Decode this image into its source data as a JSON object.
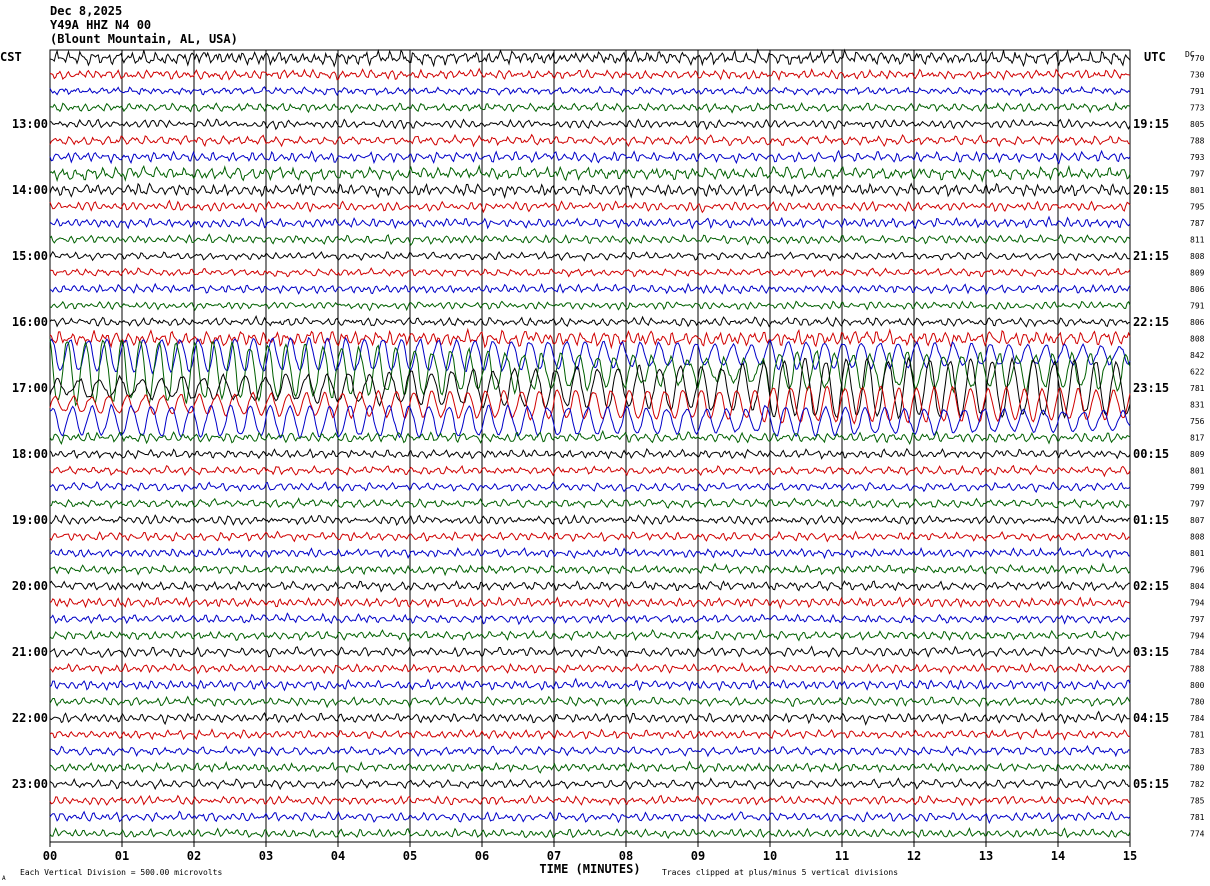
{
  "header": {
    "date": "Dec 8,2025",
    "station": "Y49A HHZ N4 00",
    "location": "(Blount Mountain, AL, USA)"
  },
  "labels": {
    "left_tz": "CST",
    "right_tz": "UTC",
    "dc": "DC",
    "x_axis_title": "TIME (MINUTES)",
    "scale_note": "Each Vertical Division =  500.00 microvolts",
    "clip_note": "Traces clipped at plus/minus 5 vertical divisions",
    "corner_mark": "A"
  },
  "colors": {
    "black": "#000000",
    "red": "#d00000",
    "blue": "#0000c8",
    "green": "#006000",
    "grid": "#000000"
  },
  "chart_data": {
    "type": "line",
    "description_free": true,
    "x_ticks": [
      "00",
      "01",
      "02",
      "03",
      "04",
      "05",
      "06",
      "07",
      "08",
      "09",
      "10",
      "11",
      "12",
      "13",
      "14",
      "15"
    ],
    "xlim": [
      0,
      15
    ],
    "trace_color_cycle": [
      "black",
      "red",
      "blue",
      "green"
    ],
    "left_hour_labels": [
      "13:00",
      "14:00",
      "15:00",
      "16:00",
      "17:00",
      "18:00",
      "19:00",
      "20:00",
      "21:00",
      "22:00",
      "23:00"
    ],
    "right_hour_labels": [
      "19:15",
      "20:15",
      "21:15",
      "22:15",
      "23:15",
      "00:15",
      "01:15",
      "02:15",
      "03:15",
      "04:15",
      "05:15"
    ],
    "dc_values": [
      770,
      730,
      791,
      773,
      805,
      788,
      793,
      797,
      801,
      795,
      787,
      811,
      808,
      809,
      806,
      791,
      806,
      808,
      842,
      622,
      781,
      831,
      756,
      817,
      809,
      801,
      799,
      797,
      807,
      808,
      801,
      796,
      804,
      794,
      797,
      794,
      784,
      788,
      800,
      780,
      784,
      781,
      783,
      780,
      782,
      785,
      781,
      774
    ],
    "traces": {
      "count": 48,
      "amplitude_profile": [
        0.8,
        0.55,
        0.45,
        0.5,
        0.5,
        0.55,
        0.6,
        0.75,
        0.7,
        0.55,
        0.55,
        0.5,
        0.45,
        0.45,
        0.5,
        0.45,
        0.5,
        0.9,
        1.6,
        3.2,
        2.2,
        1.4,
        1.5,
        0.6,
        0.5,
        0.5,
        0.5,
        0.5,
        0.5,
        0.5,
        0.5,
        0.5,
        0.55,
        0.55,
        0.5,
        0.5,
        0.55,
        0.5,
        0.55,
        0.5,
        0.55,
        0.5,
        0.5,
        0.5,
        0.5,
        0.5,
        0.55,
        0.5
      ],
      "long_period_rows": [
        18,
        19,
        20,
        21,
        22
      ]
    }
  }
}
